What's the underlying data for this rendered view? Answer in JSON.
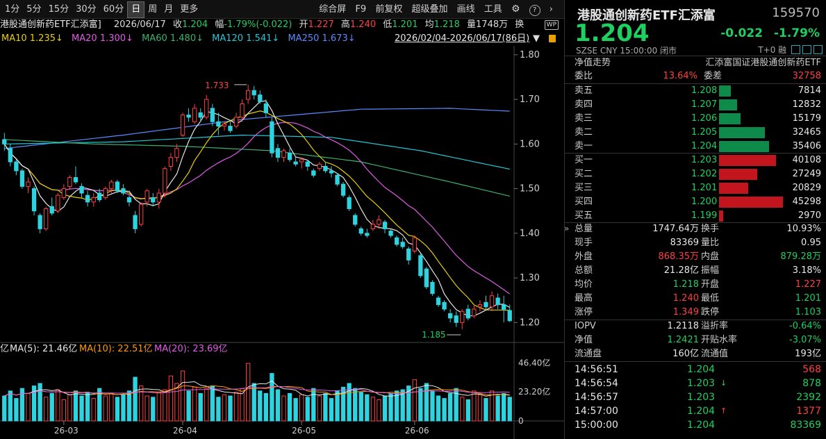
{
  "colors": {
    "up": "#ff4040",
    "down": "#1ed060",
    "bg": "#000000",
    "ma5": "#e8e8e8",
    "ma10": "#e8d000",
    "ma20": "#e15ce6",
    "ma60": "#3cb371",
    "ma120": "#25c8d8",
    "ma250": "#5a8cff"
  },
  "toolbar": {
    "periods": [
      "1分",
      "5分",
      "15分",
      "30分",
      "60分",
      "日",
      "周",
      "月",
      "更多"
    ],
    "selected_period": "日",
    "right_items": [
      "综合屏",
      "F9",
      "前复权",
      "超级叠加",
      "画线",
      "工具"
    ],
    "icons": [
      "gear-icon",
      "help-icon",
      "chevron-right-icon"
    ]
  },
  "info": {
    "title": "港股通创新药ETF汇添富]",
    "date": "2026/06/17",
    "close_label": "收",
    "close": "1.204",
    "amp_label": "幅",
    "amp": "-1.79%(-0.022)",
    "open_label": "开",
    "open": "1.227",
    "high_label": "高",
    "high": "1.240",
    "low_label": "低",
    "low": "1.201",
    "avg_label": "均",
    "avg": "1.218",
    "vol_label": "量",
    "vol": "1748万",
    "switch_label": "换",
    "wp_badge": "WP"
  },
  "ma": {
    "ma10": "MA10 1.235↓",
    "ma20": "MA20 1.300↓",
    "ma60": "MA60 1.480↓",
    "ma120": "MA120 1.541↓",
    "ma250": "MA250 1.673↓",
    "range": "2026/02/04-2026/06/17(86日)"
  },
  "chart_labels": {
    "price_ticks": [
      "1.80",
      "1.70",
      "1.60",
      "1.50",
      "1.40",
      "1.30",
      "1.20"
    ],
    "high_mark": "1.733",
    "low_mark": "1.185",
    "vol_legend_prefix": "亿",
    "vol_ma5": "MA(5): 21.46亿",
    "vol_ma10": "MA(10): 22.51亿",
    "vol_ma20": "MA(20): 23.69亿",
    "vol_ticks": [
      "46.40亿",
      "23.20亿",
      "0"
    ],
    "dates": [
      "26-03",
      "26-04",
      "26-05",
      "26-06"
    ]
  },
  "chart_data": {
    "type": "candlestick",
    "note_ylim": [
      1.16,
      1.82
    ],
    "ohlc": [
      [
        1.61,
        1.625,
        1.585,
        1.6
      ],
      [
        1.59,
        1.6,
        1.55,
        1.56
      ],
      [
        1.56,
        1.565,
        1.53,
        1.54
      ],
      [
        1.54,
        1.545,
        1.5,
        1.505
      ],
      [
        1.505,
        1.525,
        1.49,
        1.515
      ],
      [
        1.5,
        1.505,
        1.44,
        1.45
      ],
      [
        1.44,
        1.445,
        1.4,
        1.41
      ],
      [
        1.41,
        1.46,
        1.405,
        1.455
      ],
      [
        1.46,
        1.48,
        1.44,
        1.445
      ],
      [
        1.45,
        1.49,
        1.445,
        1.485
      ],
      [
        1.48,
        1.51,
        1.475,
        1.5
      ],
      [
        1.505,
        1.53,
        1.5,
        1.525
      ],
      [
        1.525,
        1.55,
        1.51,
        1.515
      ],
      [
        1.505,
        1.512,
        1.48,
        1.49
      ],
      [
        1.485,
        1.495,
        1.46,
        1.47
      ],
      [
        1.47,
        1.49,
        1.46,
        1.48
      ],
      [
        1.49,
        1.5,
        1.47,
        1.475
      ],
      [
        1.48,
        1.505,
        1.475,
        1.5
      ],
      [
        1.5,
        1.52,
        1.49,
        1.515
      ],
      [
        1.515,
        1.52,
        1.49,
        1.495
      ],
      [
        1.5,
        1.51,
        1.485,
        1.49
      ],
      [
        1.48,
        1.485,
        1.46,
        1.47
      ],
      [
        1.44,
        1.45,
        1.4,
        1.41
      ],
      [
        1.42,
        1.47,
        1.415,
        1.465
      ],
      [
        1.47,
        1.5,
        1.46,
        1.495
      ],
      [
        1.48,
        1.49,
        1.46,
        1.47
      ],
      [
        1.47,
        1.5,
        1.455,
        1.49
      ],
      [
        1.49,
        1.55,
        1.48,
        1.545
      ],
      [
        1.55,
        1.58,
        1.54,
        1.57
      ],
      [
        1.57,
        1.6,
        1.56,
        1.59
      ],
      [
        1.62,
        1.67,
        1.615,
        1.665
      ],
      [
        1.665,
        1.68,
        1.65,
        1.66
      ],
      [
        1.65,
        1.69,
        1.645,
        1.68
      ],
      [
        1.67,
        1.68,
        1.65,
        1.66
      ],
      [
        1.66,
        1.71,
        1.655,
        1.7
      ],
      [
        1.68,
        1.69,
        1.64,
        1.65
      ],
      [
        1.65,
        1.67,
        1.62,
        1.64
      ],
      [
        1.64,
        1.65,
        1.63,
        1.645
      ],
      [
        1.64,
        1.65,
        1.625,
        1.63
      ],
      [
        1.64,
        1.67,
        1.635,
        1.66
      ],
      [
        1.66,
        1.7,
        1.65,
        1.69
      ],
      [
        1.7,
        1.733,
        1.69,
        1.72
      ],
      [
        1.72,
        1.73,
        1.7,
        1.71
      ],
      [
        1.71,
        1.72,
        1.69,
        1.695
      ],
      [
        1.69,
        1.7,
        1.66,
        1.67
      ],
      [
        1.65,
        1.66,
        1.57,
        1.58
      ],
      [
        1.59,
        1.6,
        1.56,
        1.57
      ],
      [
        1.57,
        1.59,
        1.56,
        1.585
      ],
      [
        1.58,
        1.59,
        1.56,
        1.565
      ],
      [
        1.56,
        1.57,
        1.55,
        1.555
      ],
      [
        1.56,
        1.57,
        1.545,
        1.565
      ],
      [
        1.56,
        1.565,
        1.54,
        1.55
      ],
      [
        1.54,
        1.545,
        1.525,
        1.53
      ],
      [
        1.545,
        1.56,
        1.54,
        1.555
      ],
      [
        1.55,
        1.56,
        1.535,
        1.54
      ],
      [
        1.54,
        1.55,
        1.525,
        1.535
      ],
      [
        1.53,
        1.535,
        1.505,
        1.51
      ],
      [
        1.51,
        1.515,
        1.48,
        1.485
      ],
      [
        1.48,
        1.485,
        1.45,
        1.455
      ],
      [
        1.44,
        1.445,
        1.415,
        1.42
      ],
      [
        1.41,
        1.415,
        1.395,
        1.4
      ],
      [
        1.4,
        1.41,
        1.39,
        1.395
      ],
      [
        1.41,
        1.43,
        1.405,
        1.42
      ],
      [
        1.42,
        1.44,
        1.41,
        1.43
      ],
      [
        1.425,
        1.43,
        1.4,
        1.41
      ],
      [
        1.405,
        1.41,
        1.39,
        1.395
      ],
      [
        1.39,
        1.395,
        1.37,
        1.375
      ],
      [
        1.38,
        1.39,
        1.365,
        1.37
      ],
      [
        1.365,
        1.37,
        1.33,
        1.34
      ],
      [
        1.36,
        1.395,
        1.355,
        1.39
      ],
      [
        1.35,
        1.355,
        1.3,
        1.305
      ],
      [
        1.32,
        1.325,
        1.275,
        1.28
      ],
      [
        1.29,
        1.295,
        1.26,
        1.265
      ],
      [
        1.255,
        1.26,
        1.235,
        1.24
      ],
      [
        1.245,
        1.25,
        1.225,
        1.23
      ],
      [
        1.22,
        1.23,
        1.2,
        1.21
      ],
      [
        1.215,
        1.225,
        1.19,
        1.2
      ],
      [
        1.2,
        1.23,
        1.185,
        1.225
      ],
      [
        1.23,
        1.24,
        1.205,
        1.21
      ],
      [
        1.215,
        1.24,
        1.21,
        1.23
      ],
      [
        1.235,
        1.25,
        1.225,
        1.24
      ],
      [
        1.245,
        1.26,
        1.23,
        1.235
      ],
      [
        1.235,
        1.27,
        1.225,
        1.26
      ],
      [
        1.255,
        1.265,
        1.23,
        1.24
      ],
      [
        1.24,
        1.26,
        1.2,
        1.23
      ],
      [
        1.227,
        1.24,
        1.201,
        1.204
      ]
    ],
    "volumes": [
      20,
      24,
      18,
      26,
      22,
      28,
      30,
      19,
      22,
      25,
      17,
      21,
      24,
      20,
      23,
      18,
      26,
      20,
      22,
      19,
      21,
      24,
      35,
      28,
      20,
      19,
      23,
      25,
      36,
      30,
      40,
      24,
      27,
      22,
      26,
      28,
      19,
      21,
      20,
      23,
      26,
      46,
      30,
      24,
      22,
      38,
      25,
      20,
      22,
      18,
      21,
      19,
      26,
      20,
      22,
      18,
      24,
      27,
      30,
      26,
      23,
      21,
      19,
      17,
      20,
      22,
      24,
      25,
      28,
      33,
      26,
      30,
      24,
      20,
      18,
      22,
      26,
      19,
      17,
      24,
      21,
      18,
      24,
      20,
      22,
      19
    ],
    "ma_series": {
      "ma5_color": "#e8e8e8",
      "ma10_color": "#e8d000",
      "ma20_color": "#e15ce6",
      "ma60_color": "#3cb371",
      "ma120_color": "#25c8d8",
      "ma250_color": "#5a8cff"
    },
    "ma60_pts": [
      [
        0,
        1.61
      ],
      [
        15,
        1.6
      ],
      [
        30,
        1.595
      ],
      [
        45,
        1.585
      ],
      [
        60,
        1.56
      ],
      [
        75,
        1.515
      ],
      [
        86,
        1.48
      ]
    ],
    "ma120_pts": [
      [
        0,
        1.6
      ],
      [
        20,
        1.605
      ],
      [
        40,
        1.62
      ],
      [
        55,
        1.615
      ],
      [
        70,
        1.585
      ],
      [
        86,
        1.541
      ]
    ],
    "ma250_pts": [
      [
        0,
        1.59
      ],
      [
        20,
        1.62
      ],
      [
        40,
        1.655
      ],
      [
        60,
        1.678
      ],
      [
        75,
        1.68
      ],
      [
        86,
        1.673
      ]
    ],
    "ylim": [
      1.16,
      1.82
    ],
    "vol_ylim": [
      0,
      50
    ]
  },
  "panel": {
    "name": "港股通创新药ETF汇添富",
    "code": "159570",
    "price": "1.204",
    "change": "-0.022",
    "change_pct": "-1.79%",
    "market": "SZSE  CNY  15:00:00  闭市",
    "t0": "T+0 融",
    "nav_trend": "净值走势",
    "nav_name": "汇添富国证港股通创新药ETF",
    "weibi_label": "委比",
    "weibi": "13.64%",
    "weicha_label": "委差",
    "weicha": "32758",
    "asks": [
      {
        "label": "卖五",
        "price": "1.208",
        "vol": "7814",
        "frac": 0.18
      },
      {
        "label": "卖四",
        "price": "1.207",
        "vol": "12832",
        "frac": 0.28
      },
      {
        "label": "卖三",
        "price": "1.206",
        "vol": "15179",
        "frac": 0.34
      },
      {
        "label": "卖二",
        "price": "1.205",
        "vol": "32465",
        "frac": 0.72
      },
      {
        "label": "卖一",
        "price": "1.204",
        "vol": "35406",
        "frac": 0.78
      }
    ],
    "bids": [
      {
        "label": "买一",
        "price": "1.203",
        "vol": "40108",
        "frac": 0.89
      },
      {
        "label": "买二",
        "price": "1.202",
        "vol": "27249",
        "frac": 0.6
      },
      {
        "label": "买三",
        "price": "1.201",
        "vol": "20829",
        "frac": 0.46
      },
      {
        "label": "买四",
        "price": "1.200",
        "vol": "45298",
        "frac": 1.0
      },
      {
        "label": "买五",
        "price": "1.199",
        "vol": "2970",
        "frac": 0.07
      }
    ],
    "stats": [
      {
        "l1": "总量",
        "v1": "1747.64万",
        "c1": "w",
        "l2": "换手",
        "v2": "10.93%",
        "c2": "w"
      },
      {
        "l1": "现手",
        "v1": "83369",
        "c1": "w",
        "l2": "量比",
        "v2": "0.95",
        "c2": "w"
      },
      {
        "l1": "外盘",
        "v1": "868.35万",
        "c1": "r",
        "l2": "内盘",
        "v2": "879.28万",
        "c2": "g"
      },
      {
        "l1": "总额",
        "v1": "21.28亿",
        "c1": "w",
        "l2": "振幅",
        "v2": "3.18%",
        "c2": "w"
      },
      {
        "l1": "均价",
        "v1": "1.218",
        "c1": "g",
        "l2": "开盘",
        "v2": "1.227",
        "c2": "r"
      },
      {
        "l1": "最高",
        "v1": "1.240",
        "c1": "r",
        "l2": "最低",
        "v2": "1.201",
        "c2": "g"
      },
      {
        "l1": "涨停",
        "v1": "1.349",
        "c1": "r",
        "l2": "跌停",
        "v2": "1.103",
        "c2": "g"
      }
    ],
    "stats2": [
      {
        "l1": "IOPV",
        "v1": "1.2118",
        "c1": "w",
        "l2": "溢折率",
        "v2": "-0.64%",
        "c2": "g"
      },
      {
        "l1": "净值",
        "v1": "1.2421",
        "c1": "g",
        "l2": "开贴水率",
        "v2": "-3.07%",
        "c2": "g"
      },
      {
        "l1": "流通盘",
        "v1": "160亿",
        "c1": "w",
        "l2": "流通值",
        "v2": "193亿",
        "c2": "w"
      }
    ],
    "ticks": [
      {
        "time": "14:56:51",
        "price": "1.204",
        "arrow": "",
        "vol": "568",
        "vc": "r"
      },
      {
        "time": "14:56:54",
        "price": "1.203",
        "arrow": "↓",
        "vol": "878",
        "vc": "g"
      },
      {
        "time": "14:56:57",
        "price": "1.203",
        "arrow": "",
        "vol": "2392",
        "vc": "g"
      },
      {
        "time": "14:57:00",
        "price": "1.204",
        "arrow": "↑",
        "vol": "1377",
        "vc": "r"
      },
      {
        "time": "15:00:00",
        "price": "1.204",
        "arrow": "",
        "vol": "83369",
        "vc": "g"
      }
    ],
    "collapse_icon": "»"
  }
}
